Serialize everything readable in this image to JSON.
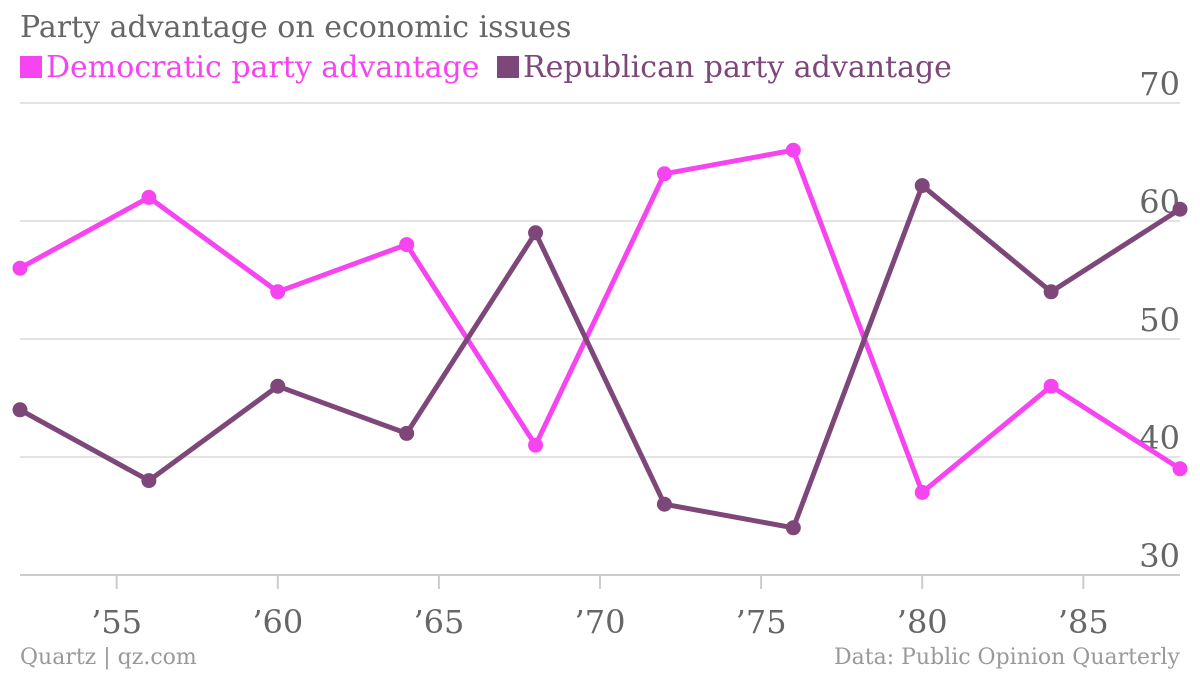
{
  "chart_data": {
    "type": "line",
    "title": "Party advantage on economic issues",
    "x": [
      1952,
      1956,
      1960,
      1964,
      1968,
      1972,
      1976,
      1980,
      1984,
      1988
    ],
    "series": [
      {
        "name": "Democratic party advantage",
        "color": "#f645f0",
        "values": [
          56,
          62,
          54,
          58,
          41,
          64,
          66,
          37,
          46,
          39
        ]
      },
      {
        "name": "Republican party advantage",
        "color": "#7e4779",
        "values": [
          44,
          38,
          46,
          42,
          59,
          36,
          34,
          63,
          54,
          61
        ]
      }
    ],
    "xticks": [
      1955,
      1960,
      1965,
      1970,
      1975,
      1980,
      1985
    ],
    "xtick_labels": [
      "’55",
      "’60",
      "’65",
      "’70",
      "’75",
      "’80",
      "’85"
    ],
    "yticks": [
      30,
      40,
      50,
      60,
      70
    ],
    "ytick_labels": [
      "30",
      "40",
      "50",
      "60",
      "70"
    ],
    "ylim": [
      30,
      70
    ],
    "xlim": [
      1952,
      1988
    ],
    "grid": true,
    "legend_position": "top-left"
  },
  "footer": {
    "left": "Quartz | qz.com",
    "right": "Data: Public Opinion Quarterly"
  }
}
